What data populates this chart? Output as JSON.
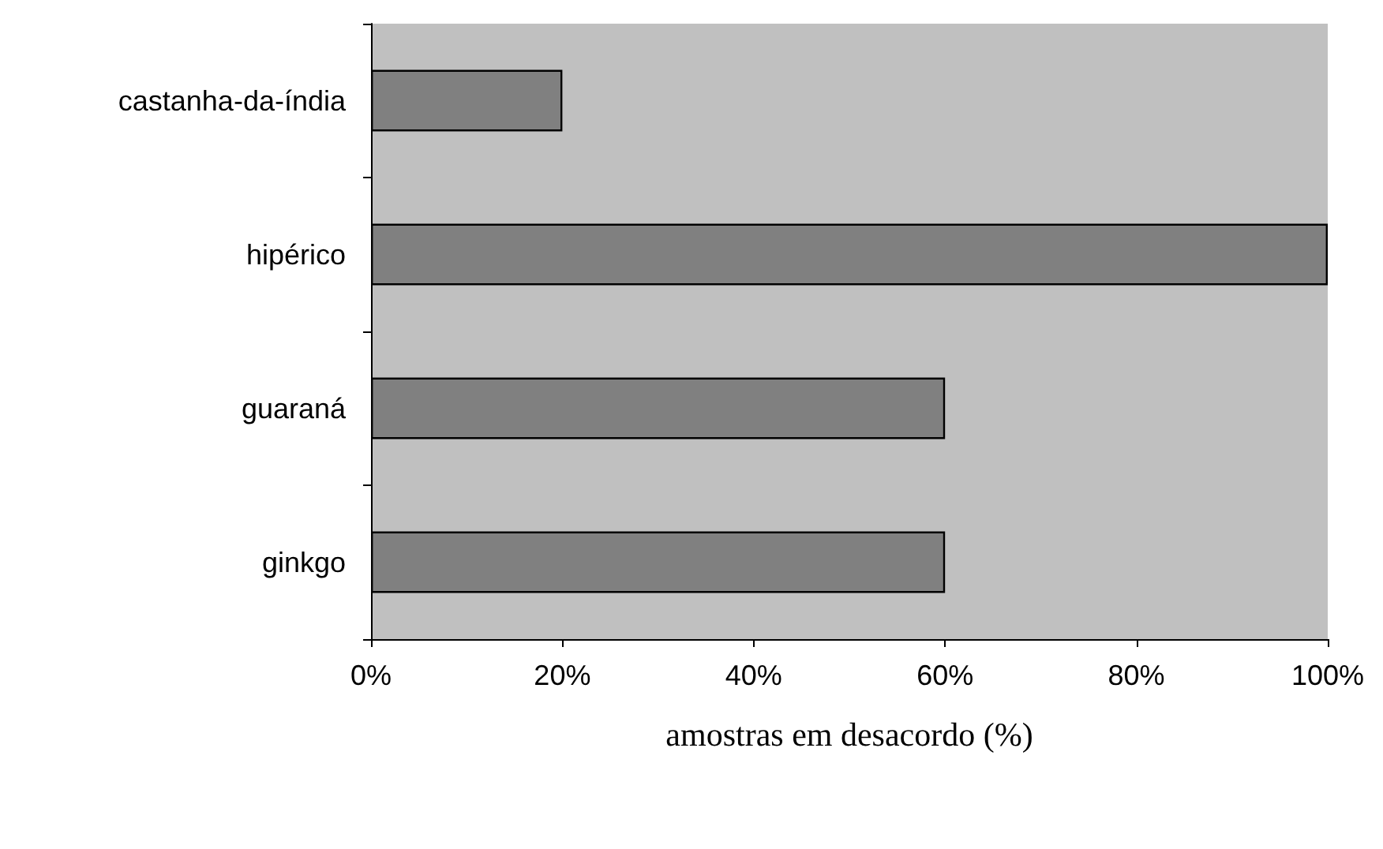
{
  "chart_data": {
    "type": "bar",
    "orientation": "horizontal",
    "xlabel": "amostras em desacordo (%)",
    "categories": [
      "castanha-da-índia",
      "hipérico",
      "guaraná",
      "ginkgo"
    ],
    "values": [
      20,
      100,
      60,
      60
    ],
    "color": "#808080",
    "xlim": [
      0,
      100
    ],
    "xticks": [
      {
        "value": 0,
        "label": "0%"
      },
      {
        "value": 20,
        "label": "20%"
      },
      {
        "value": 40,
        "label": "40%"
      },
      {
        "value": 60,
        "label": "60%"
      },
      {
        "value": 80,
        "label": "80%"
      },
      {
        "value": 100,
        "label": "100%"
      }
    ],
    "grid": false
  }
}
